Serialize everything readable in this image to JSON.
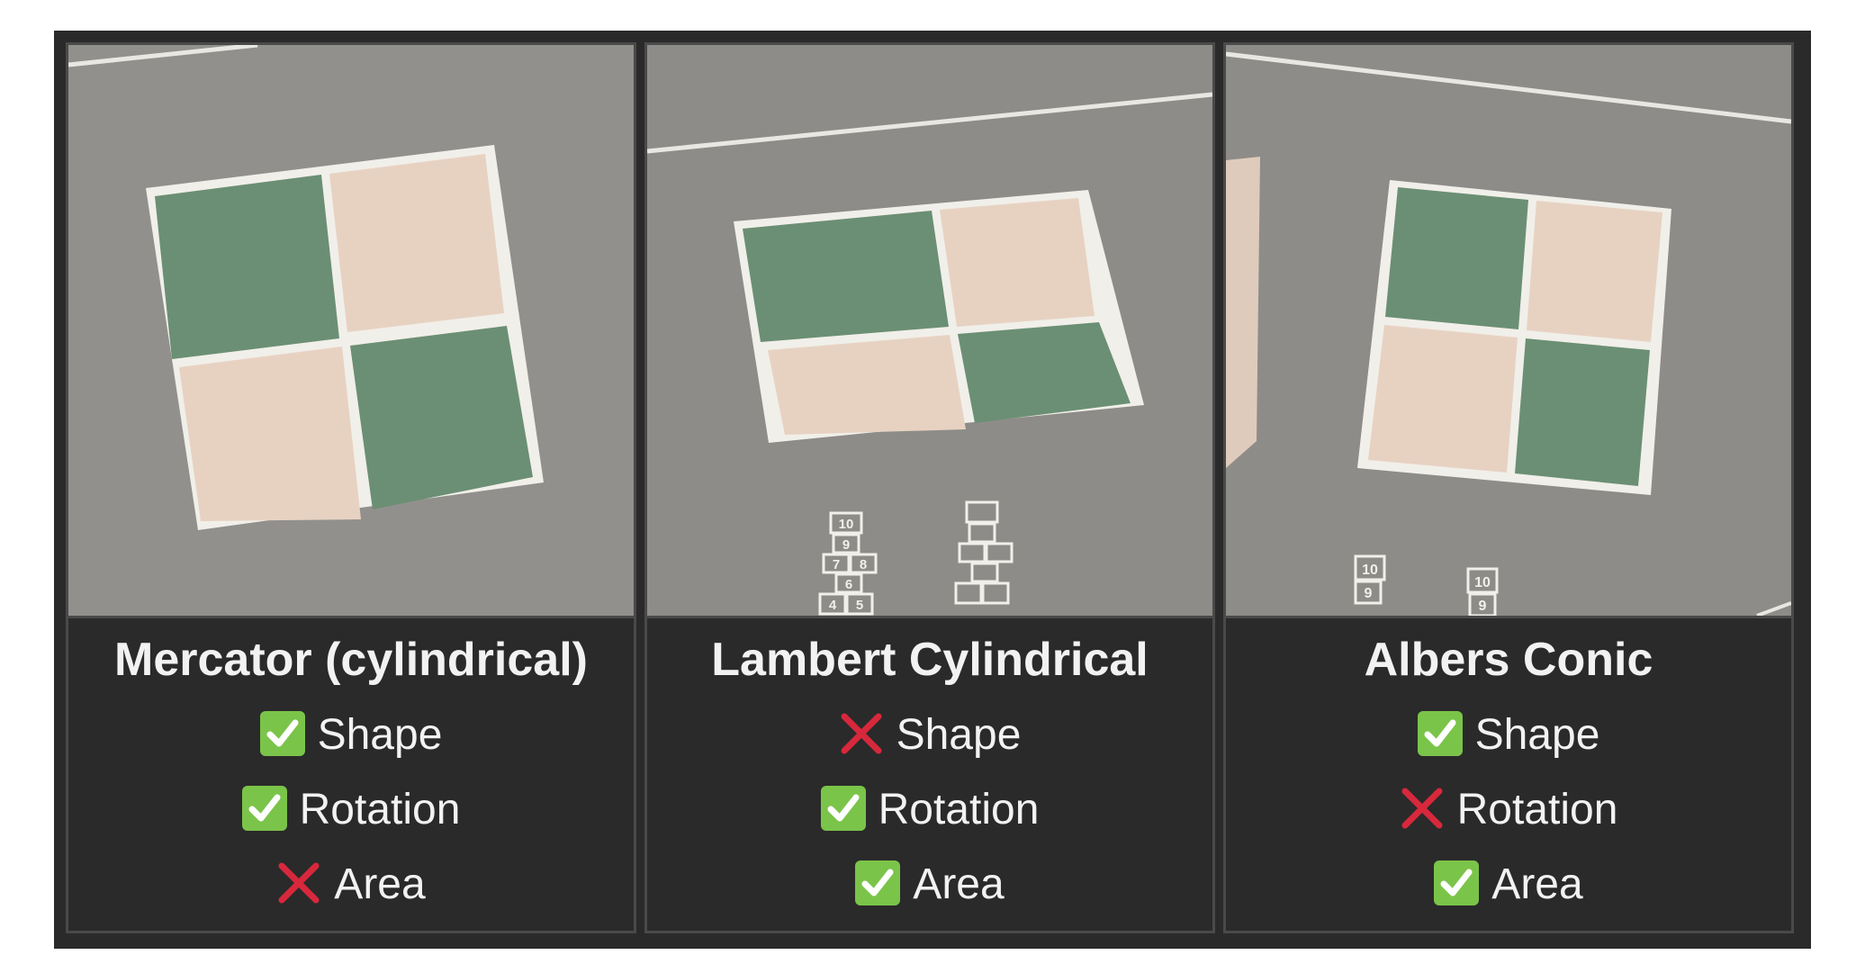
{
  "colors": {
    "background": "#2a2a2a",
    "border": "#4a4a4a",
    "text": "#f2f2f2",
    "check_green": "#7bc44a",
    "cross_red": "#d8283c",
    "asphalt": "#8e8c89",
    "green_square": "#6b8f74",
    "tan_square": "#e7d2c2"
  },
  "panels": [
    {
      "title": "Mercator (cylindrical)",
      "criteria": [
        {
          "label": "Shape",
          "status": "check-icon"
        },
        {
          "label": "Rotation",
          "status": "check-icon"
        },
        {
          "label": "Area",
          "status": "cross-icon"
        }
      ]
    },
    {
      "title": "Lambert Cylindrical",
      "criteria": [
        {
          "label": "Shape",
          "status": "cross-icon"
        },
        {
          "label": "Rotation",
          "status": "check-icon"
        },
        {
          "label": "Area",
          "status": "check-icon"
        }
      ],
      "hopscotch_labels": [
        "10",
        "9",
        "7",
        "8",
        "6",
        "4",
        "5"
      ]
    },
    {
      "title": "Albers Conic",
      "criteria": [
        {
          "label": "Shape",
          "status": "check-icon"
        },
        {
          "label": "Rotation",
          "status": "cross-icon"
        },
        {
          "label": "Area",
          "status": "check-icon"
        }
      ],
      "hopscotch_labels": [
        "10",
        "9"
      ]
    }
  ]
}
